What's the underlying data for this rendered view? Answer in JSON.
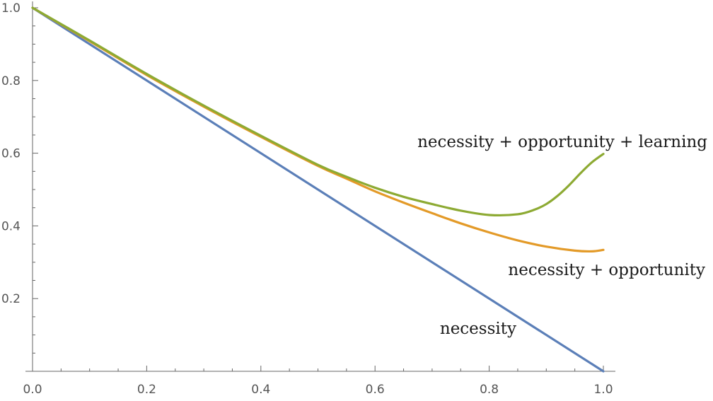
{
  "chart_data": {
    "type": "line",
    "title": "",
    "xlabel": "",
    "ylabel": "",
    "xlim": [
      0,
      1
    ],
    "ylim": [
      0,
      1
    ],
    "grid": false,
    "x_ticks": [
      "0.0",
      "0.2",
      "0.4",
      "0.6",
      "0.8",
      "1.0"
    ],
    "y_ticks": [
      "0.2",
      "0.4",
      "0.6",
      "0.8",
      "1.0"
    ],
    "series": [
      {
        "name": "necessity",
        "color": "#5b7fb8",
        "x": [
          0.0,
          1.0
        ],
        "y": [
          1.0,
          0.0
        ]
      },
      {
        "name": "necessity + opportunity",
        "color": "#e39a28",
        "x": [
          0.0,
          0.1,
          0.2,
          0.3,
          0.4,
          0.5,
          0.55,
          0.6,
          0.65,
          0.7,
          0.75,
          0.8,
          0.85,
          0.9,
          0.95,
          0.98,
          1.0
        ],
        "y": [
          1.0,
          0.908,
          0.815,
          0.728,
          0.645,
          0.565,
          0.53,
          0.495,
          0.464,
          0.435,
          0.407,
          0.382,
          0.36,
          0.343,
          0.332,
          0.33,
          0.334
        ]
      },
      {
        "name": "necessity + opportunity + learning",
        "color": "#8daa33",
        "x": [
          0.0,
          0.1,
          0.2,
          0.3,
          0.4,
          0.5,
          0.55,
          0.6,
          0.65,
          0.7,
          0.75,
          0.8,
          0.85,
          0.88,
          0.9,
          0.92,
          0.94,
          0.96,
          0.98,
          1.0
        ],
        "y": [
          1.0,
          0.91,
          0.818,
          0.731,
          0.648,
          0.568,
          0.535,
          0.505,
          0.48,
          0.46,
          0.442,
          0.43,
          0.432,
          0.445,
          0.46,
          0.483,
          0.512,
          0.545,
          0.575,
          0.598
        ]
      }
    ],
    "annotations": [
      {
        "text": "necessity + opportunity + learning",
        "series": 2
      },
      {
        "text": "necessity + opportunity",
        "series": 1
      },
      {
        "text": "necessity",
        "series": 0
      }
    ]
  }
}
